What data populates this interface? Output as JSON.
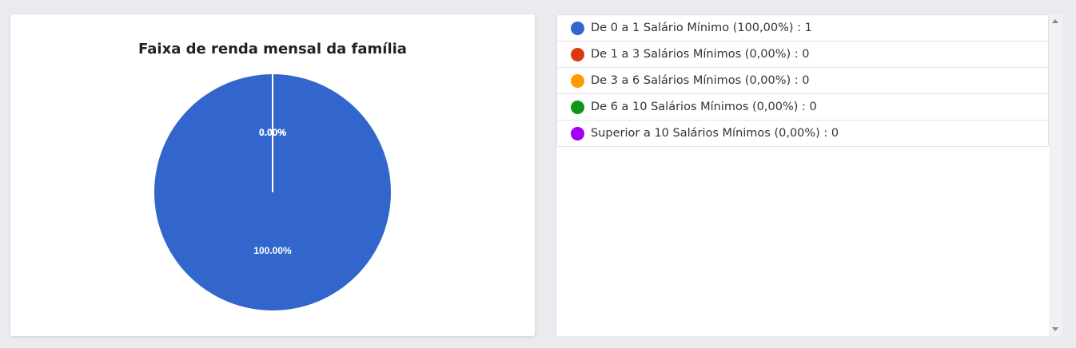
{
  "chart_data": {
    "type": "pie",
    "title": "Faixa de renda mensal da família",
    "categories": [
      "De 0 a 1 Salário Mínimo",
      "De 1 a 3 Salários Mínimos",
      "De 3 a 6 Salários Mínimos",
      "De 6 a 10 Salários Mínimos",
      "Superior a 10 Salários Mínimos"
    ],
    "values": [
      1,
      0,
      0,
      0,
      0
    ],
    "colors": [
      "#3366cc",
      "#dc3912",
      "#ff9900",
      "#109618",
      "#990099"
    ],
    "data_labels": [
      "100.00%",
      "0.00%",
      "0.00%",
      "0.00%",
      "0.00%"
    ],
    "legend_position": "right"
  },
  "legend": {
    "items": [
      {
        "label": "De 0 a 1 Salário Mínimo (100,00%) : 1",
        "color": "#3366cc"
      },
      {
        "label": "De 1 a 3 Salários Mínimos (0,00%) : 0",
        "color": "#dc3912"
      },
      {
        "label": "De 3 a 6 Salários Mínimos (0,00%) : 0",
        "color": "#ff9900"
      },
      {
        "label": "De 6 a 10 Salários Mínimos (0,00%) : 0",
        "color": "#109618"
      },
      {
        "label": "Superior a 10 Salários Mínimos (0,00%) : 0",
        "color": "#a100f2"
      }
    ]
  }
}
